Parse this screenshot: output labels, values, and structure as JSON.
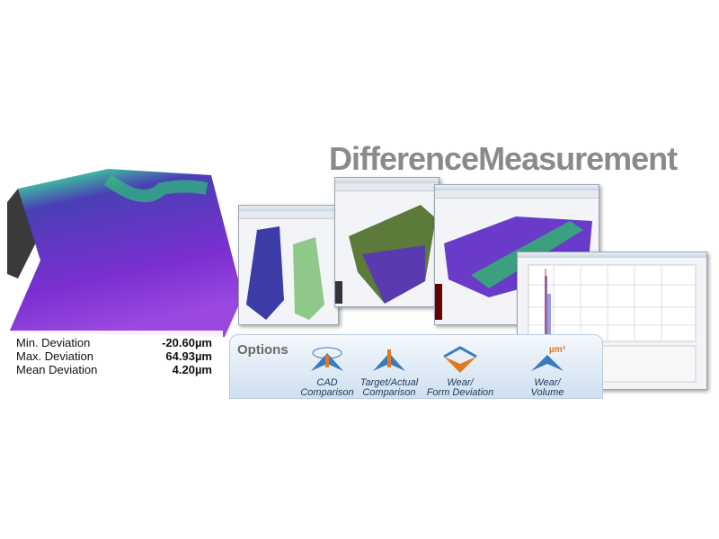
{
  "header": {
    "title": "DifferenceMeasurement"
  },
  "stats": [
    {
      "label": "Min. Deviation",
      "value": "-20.60µm"
    },
    {
      "label": "Max. Deviation",
      "value": "64.93µm"
    },
    {
      "label": "Mean Deviation",
      "value": "4.20µm"
    }
  ],
  "options": {
    "title": "Options",
    "items": [
      {
        "lines": [
          "CAD",
          "Comparison"
        ]
      },
      {
        "lines": [
          "Target/Actual",
          "Comparison"
        ]
      },
      {
        "lines": [
          "Wear/",
          "Form Deviation"
        ]
      },
      {
        "lines": [
          "Wear/",
          "Volume"
        ],
        "icon_label": "µm³"
      }
    ]
  }
}
